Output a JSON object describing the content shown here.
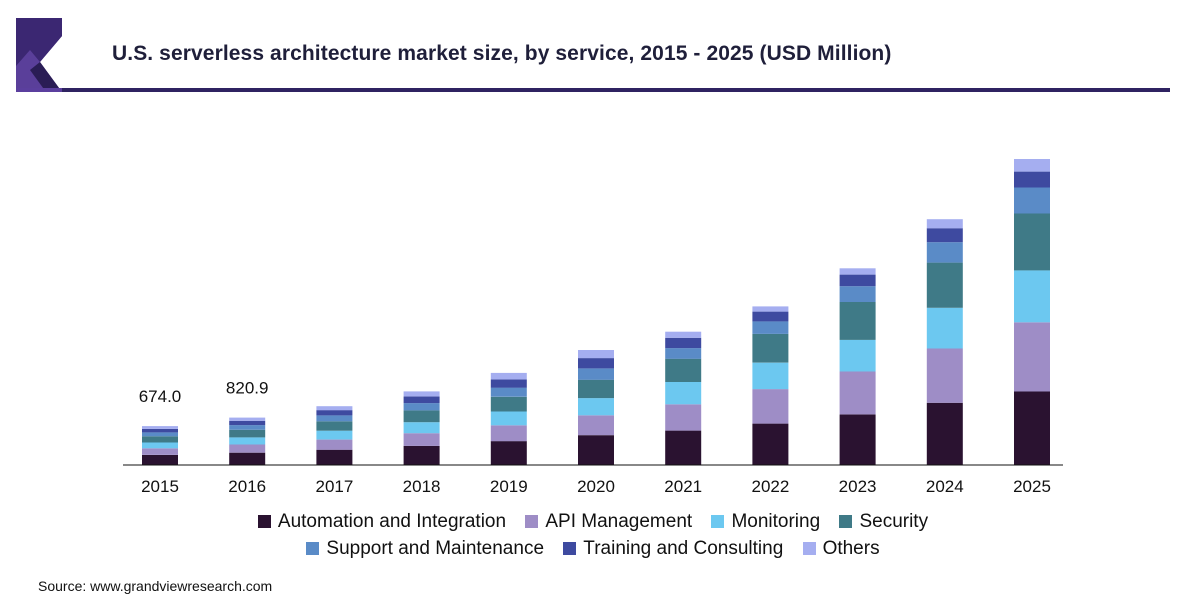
{
  "header": {
    "title": "U.S. serverless architecture market size, by service, 2015 - 2025 (USD Million)"
  },
  "chart_data": {
    "type": "bar",
    "stacked": true,
    "title": "U.S. serverless architecture market size, by service, 2015 - 2025 (USD Million)",
    "xlabel": "",
    "ylabel": "",
    "ylim": [
      0,
      5200
    ],
    "categories": [
      "2015",
      "2016",
      "2017",
      "2018",
      "2019",
      "2020",
      "2021",
      "2022",
      "2023",
      "2024",
      "2025"
    ],
    "series": [
      {
        "name": "Automation and Integration",
        "color": "#2a1230",
        "values": [
          174,
          214,
          265,
          331,
          414,
          517,
          596,
          718,
          876,
          1078,
          1274
        ]
      },
      {
        "name": "API Management",
        "color": "#9e8dc6",
        "values": [
          115,
          141,
          176,
          220,
          275,
          344,
          456,
          598,
          744,
          941,
          1199
        ]
      },
      {
        "name": "Monitoring",
        "color": "#6cc8f0",
        "values": [
          101,
          123,
          153,
          191,
          239,
          298,
          386,
          458,
          548,
          706,
          901
        ]
      },
      {
        "name": "Security",
        "color": "#3f7a87",
        "values": [
          108,
          132,
          163,
          204,
          255,
          319,
          404,
          498,
          657,
          784,
          986
        ]
      },
      {
        "name": "Support and Maintenance",
        "color": "#5a8bc7",
        "values": [
          67,
          82,
          102,
          127,
          158,
          197,
          185,
          218,
          274,
          353,
          450
        ]
      },
      {
        "name": "Training and Consulting",
        "color": "#3e4aa0",
        "values": [
          61,
          74,
          92,
          115,
          143,
          178,
          178,
          169,
          201,
          242,
          276
        ]
      },
      {
        "name": "Others",
        "color": "#a5aef0",
        "values": [
          48,
          55,
          69,
          87,
          113,
          141,
          106,
          90,
          110,
          157,
          218
        ]
      }
    ],
    "data_labels": [
      {
        "category": "2015",
        "text": "674.0"
      },
      {
        "category": "2016",
        "text": "820.9"
      }
    ],
    "legend_position": "bottom",
    "grid": false
  },
  "source": "Source: www.grandviewresearch.com"
}
